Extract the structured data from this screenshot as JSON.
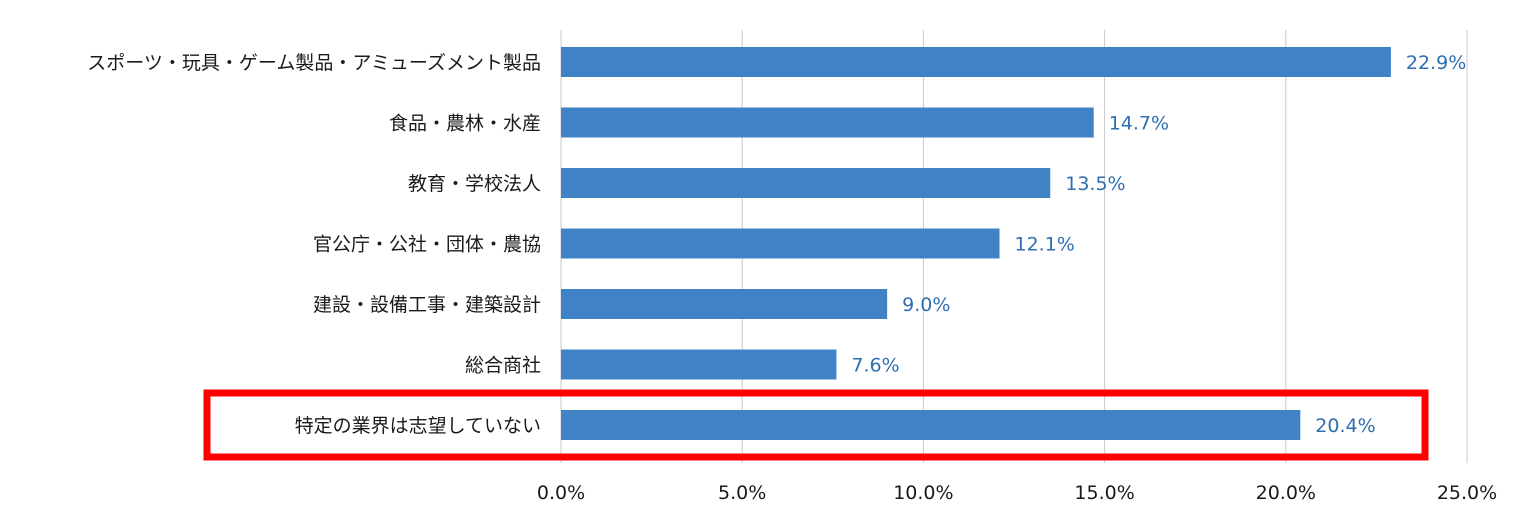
{
  "chart_data": {
    "type": "bar",
    "orientation": "horizontal",
    "categories": [
      "スポーツ・玩具・ゲーム製品・アミューズメント製品",
      "食品・農林・水産",
      "教育・学校法人",
      "官公庁・公社・団体・農協",
      "建設・設備工事・建築設計",
      "総合商社",
      "特定の業界は志望していない"
    ],
    "values": [
      22.9,
      14.7,
      13.5,
      12.1,
      9.0,
      7.6,
      20.4
    ],
    "data_labels": [
      "22.9%",
      "14.7%",
      "13.5%",
      "12.1%",
      "9.0%",
      "7.6%",
      "20.4%"
    ],
    "xlim": [
      0,
      25
    ],
    "x_ticks": [
      0,
      5,
      10,
      15,
      20,
      25
    ],
    "x_tick_labels": [
      "0.0%",
      "5.0%",
      "10.0%",
      "15.0%",
      "20.0%",
      "25.0%"
    ],
    "grid": "vertical",
    "highlighted_category": "特定の業界は志望していない",
    "colors": {
      "bar": "#3f83c6",
      "data_label": "#2e6faf",
      "grid": "#c8c8c8",
      "highlight_box": "#ff0000"
    }
  }
}
